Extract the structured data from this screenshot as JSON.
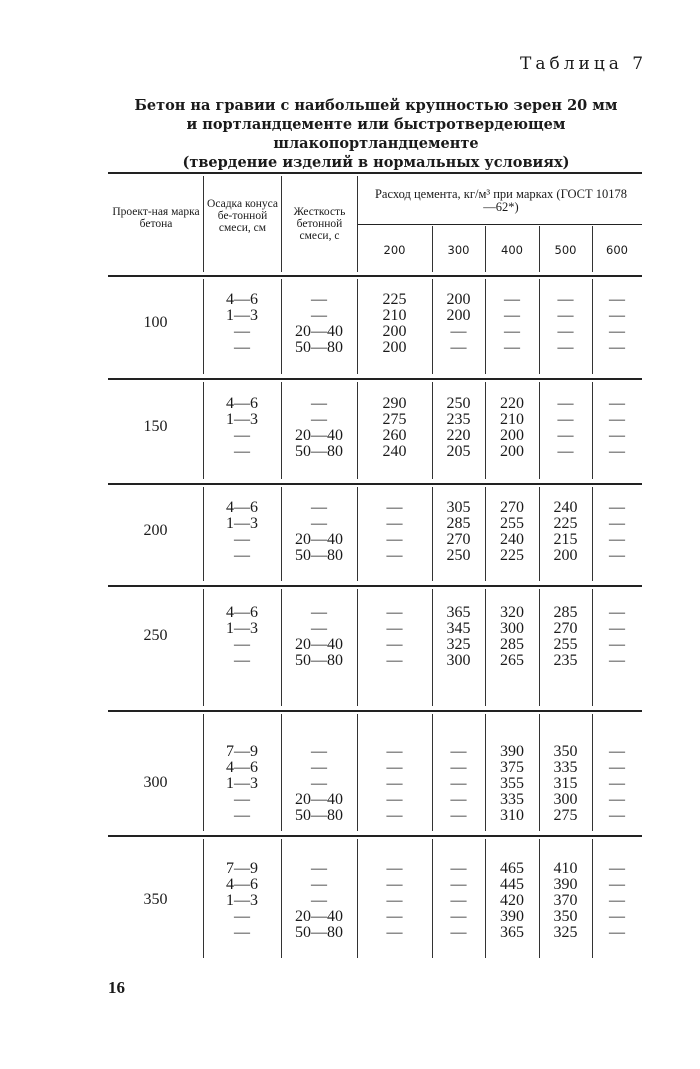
{
  "table_label": "Таблица 7",
  "title": [
    "Бетон на гравии с наибольшей крупностью зерен 20 мм",
    "и портландцементе или быстротвердеющем шлакопортландцементе",
    "(твердение изделий в нормальных условиях)"
  ],
  "headers": {
    "grade": "Проект-ная марка бетона",
    "slump": "Осадка конуса бе-тонной смеси, см",
    "stiffness": "Жесткость бетонной смеси, с",
    "cement_group": "Расход цемента, кг/м³ при марках (ГОСТ 10178—62*)",
    "cement_grades": [
      "200",
      "300",
      "400",
      "500",
      "600"
    ]
  },
  "groups": [
    {
      "grade": "100",
      "slump": [
        "4—6",
        "1—3",
        "—",
        "—"
      ],
      "stiffness": [
        "—",
        "—",
        "20—40",
        "50—80"
      ],
      "c200": [
        "225",
        "210",
        "200",
        "200"
      ],
      "c300": [
        "200",
        "200",
        "—",
        "—"
      ],
      "c400": [
        "—",
        "—",
        "—",
        "—"
      ],
      "c500": [
        "—",
        "—",
        "—",
        "—"
      ],
      "c600": [
        "—",
        "—",
        "—",
        "—"
      ]
    },
    {
      "grade": "150",
      "slump": [
        "4—6",
        "1—3",
        "—",
        "—"
      ],
      "stiffness": [
        "—",
        "—",
        "20—40",
        "50—80"
      ],
      "c200": [
        "290",
        "275",
        "260",
        "240"
      ],
      "c300": [
        "250",
        "235",
        "220",
        "205"
      ],
      "c400": [
        "220",
        "210",
        "200",
        "200"
      ],
      "c500": [
        "—",
        "—",
        "—",
        "—"
      ],
      "c600": [
        "—",
        "—",
        "—",
        "—"
      ]
    },
    {
      "grade": "200",
      "slump": [
        "4—6",
        "1—3",
        "—",
        "—"
      ],
      "stiffness": [
        "—",
        "—",
        "20—40",
        "50—80"
      ],
      "c200": [
        "—",
        "—",
        "—",
        "—"
      ],
      "c300": [
        "305",
        "285",
        "270",
        "250"
      ],
      "c400": [
        "270",
        "255",
        "240",
        "225"
      ],
      "c500": [
        "240",
        "225",
        "215",
        "200"
      ],
      "c600": [
        "—",
        "—",
        "—",
        "—"
      ]
    },
    {
      "grade": "250",
      "slump": [
        "4—6",
        "1—3",
        "—",
        "—"
      ],
      "stiffness": [
        "—",
        "—",
        "20—40",
        "50—80"
      ],
      "c200": [
        "—",
        "—",
        "—",
        "—"
      ],
      "c300": [
        "365",
        "345",
        "325",
        "300"
      ],
      "c400": [
        "320",
        "300",
        "285",
        "265"
      ],
      "c500": [
        "285",
        "270",
        "255",
        "235"
      ],
      "c600": [
        "—",
        "—",
        "—",
        "—"
      ]
    },
    {
      "grade": "300",
      "slump": [
        "7—9",
        "4—6",
        "1—3",
        "—",
        "—"
      ],
      "stiffness": [
        "—",
        "—",
        "—",
        "20—40",
        "50—80"
      ],
      "c200": [
        "—",
        "—",
        "—",
        "—",
        "—"
      ],
      "c300": [
        "—",
        "—",
        "—",
        "—",
        "—"
      ],
      "c400": [
        "390",
        "375",
        "355",
        "335",
        "310"
      ],
      "c500": [
        "350",
        "335",
        "315",
        "300",
        "275"
      ],
      "c600": [
        "—",
        "—",
        "—",
        "—",
        "—"
      ]
    },
    {
      "grade": "350",
      "slump": [
        "7—9",
        "4—6",
        "1—3",
        "—",
        "—"
      ],
      "stiffness": [
        "—",
        "—",
        "—",
        "20—40",
        "50—80"
      ],
      "c200": [
        "—",
        "—",
        "—",
        "—",
        "—"
      ],
      "c300": [
        "—",
        "—",
        "—",
        "—",
        "—"
      ],
      "c400": [
        "465",
        "445",
        "420",
        "390",
        "365"
      ],
      "c500": [
        "410",
        "390",
        "370",
        "350",
        "325"
      ],
      "c600": [
        "—",
        "—",
        "—",
        "—",
        "—"
      ]
    }
  ],
  "page_number": "16"
}
